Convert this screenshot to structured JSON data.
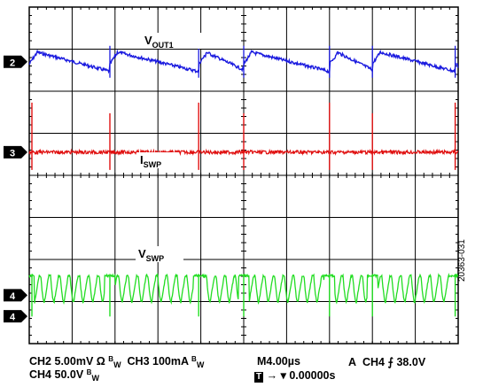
{
  "chart_data": {
    "type": "line",
    "x_divisions": 10,
    "y_divisions": 8,
    "grid": true,
    "channels": [
      {
        "marker": "2",
        "label": "V",
        "label_sub": "OUT1",
        "color": "#1a1adf",
        "baseline_div": 1.3,
        "description": "ripple sawtooth"
      },
      {
        "marker": "3",
        "label": "I",
        "label_sub": "SWP",
        "color": "#e01010",
        "baseline_div": 3.45,
        "description": "spikes"
      },
      {
        "marker": "4",
        "label": "V",
        "label_sub": "SWP",
        "color": "#22dd22",
        "baseline_div": 6.85,
        "description": "switching"
      }
    ],
    "burst_events_div": [
      0.0,
      1.88,
      3.95,
      5.0,
      7.0,
      8.0,
      9.93
    ]
  },
  "footer": {
    "ch2": "CH2",
    "ch2_scale": "5.00mV",
    "ch2_ohm": "Ω",
    "bw": "B",
    "bw_sub": "W",
    "ch3": "CH3",
    "ch3_scale": "100mA",
    "timebase": "M4.00µs",
    "trigger_mode": "A",
    "trigger_ch": "CH4",
    "trigger_slope": "⨍",
    "trigger_level": "38.0V",
    "ch4": "CH4",
    "ch4_scale": "50.0V",
    "trigger_box": "T",
    "trigger_arrow": "→ ▾",
    "trigger_pos": "0.00000s"
  },
  "figure_id": "20363-031"
}
